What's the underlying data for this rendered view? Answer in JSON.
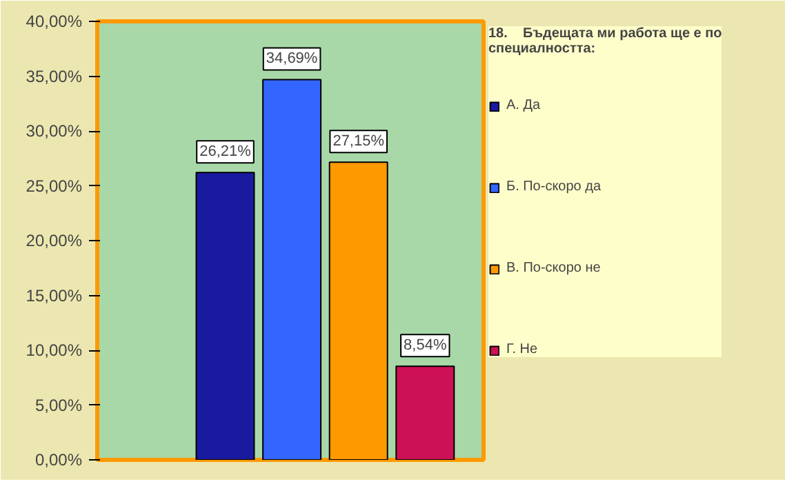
{
  "chart_data": {
    "type": "bar",
    "legend_title": "18.    Бъдещата ми работа ще е по специалността:",
    "categories": [
      null
    ],
    "series": [
      {
        "name": "А. Да",
        "color": "#1a1aa0",
        "values": [
          26.21
        ],
        "value_labels": [
          "26,21%"
        ]
      },
      {
        "name": "Б. По-скоро да",
        "color": "#3366ff",
        "values": [
          34.69
        ],
        "value_labels": [
          "34,69%"
        ]
      },
      {
        "name": "В. По-скоро не",
        "color": "#ff9900",
        "values": [
          27.15
        ],
        "value_labels": [
          "27,15%"
        ]
      },
      {
        "name": "Г. Не",
        "color": "#cc1155",
        "values": [
          8.54
        ],
        "value_labels": [
          "8,54%"
        ]
      }
    ],
    "ylim": [
      0,
      40
    ],
    "yticks": [
      {
        "value": 0,
        "label": "0,00%"
      },
      {
        "value": 5,
        "label": "5,00%"
      },
      {
        "value": 10,
        "label": "10,00%"
      },
      {
        "value": 15,
        "label": "15,00%"
      },
      {
        "value": 20,
        "label": "20,00%"
      },
      {
        "value": 25,
        "label": "25,00%"
      },
      {
        "value": 30,
        "label": "30,00%"
      },
      {
        "value": 35,
        "label": "35,00%"
      },
      {
        "value": 40,
        "label": "40,00%"
      }
    ],
    "legend": "right"
  }
}
